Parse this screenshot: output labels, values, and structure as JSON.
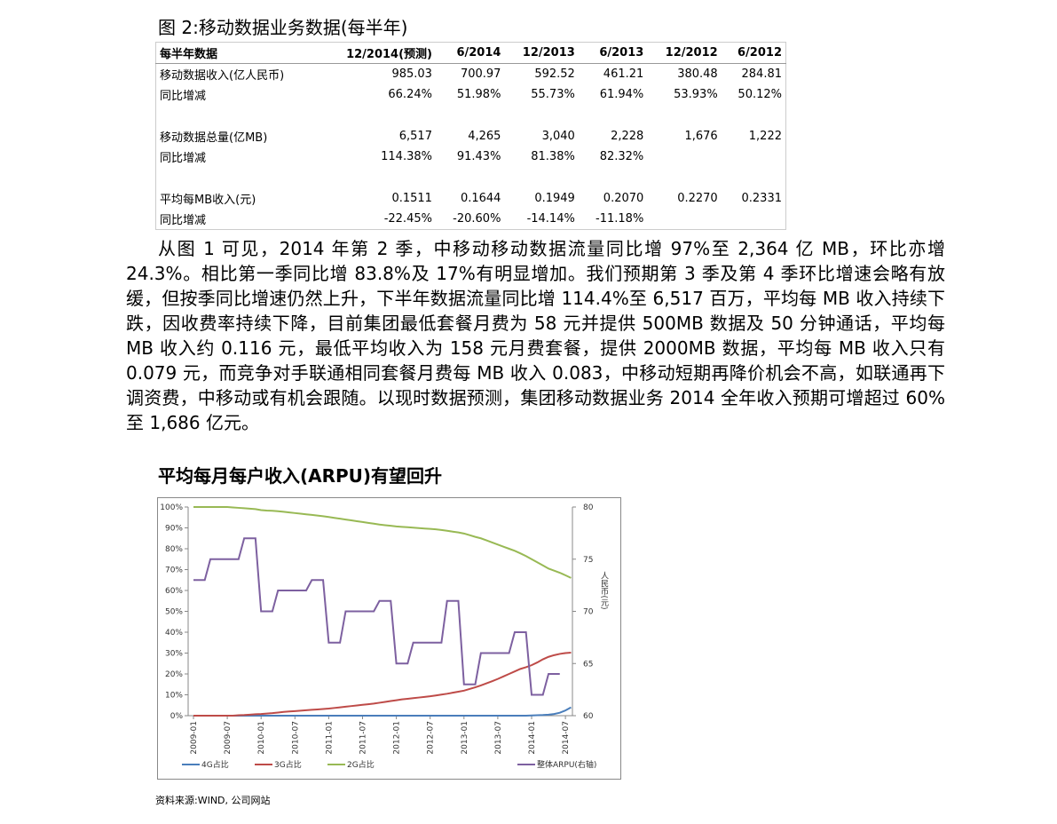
{
  "figure_title": "图 2:移动数据业务数据(每半年)",
  "table": {
    "header": [
      "每半年数据",
      "12/2014(预测)",
      "6/2014",
      "12/2013",
      "6/2013",
      "12/2012",
      "6/2012"
    ],
    "rows": [
      [
        "移动数据收入(亿人民币)",
        "985.03",
        "700.97",
        "592.52",
        "461.21",
        "380.48",
        "284.81"
      ],
      [
        "同比增减",
        "66.24%",
        "51.98%",
        "55.73%",
        "61.94%",
        "53.93%",
        "50.12%"
      ],
      [
        "移动数据总量(亿MB)",
        "6,517",
        "4,265",
        "3,040",
        "2,228",
        "1,676",
        "1,222"
      ],
      [
        "同比增减",
        "114.38%",
        "91.43%",
        "81.38%",
        "82.32%",
        null,
        null
      ],
      [
        "平均每MB收入(元)",
        "0.1511",
        "0.1644",
        "0.1949",
        "0.2070",
        "0.2270",
        "0.2331"
      ],
      [
        "同比增减",
        "-22.45%",
        "-20.60%",
        "-14.14%",
        "-11.18%",
        null,
        null
      ]
    ]
  },
  "paragraph": "从图 1 可见，2014 年第 2 季，中移动移动数据流量同比增 97%至 2,364 亿 MB，环比亦增 24.3%。相比第一季同比增 83.8%及 17%有明显增加。我们预期第 3 季及第 4 季环比增速会略有放缓，但按季同比增速仍然上升，下半年数据流量同比增 114.4%至 6,517 百万，平均每 MB 收入持续下跌，因收费率持续下降，目前集团最低套餐月费为 58 元并提供 500MB 数据及 50 分钟通话，平均每 MB 收入约 0.116 元，最低平均收入为 158 元月费套餐，提供 2000MB 数据，平均每 MB 收入只有 0.079 元，而竞争对手联通相同套餐月费每 MB 收入 0.083，中移动短期再降价机会不高，如联通再下调资费，中移动或有机会跟随。以现时数据预测，集团移动数据业务 2014 全年收入预期可增超过 60%至 1,686 亿元。",
  "heading": "平均每月每户收入(ARPU)有望回升",
  "chart_data": {
    "type": "line",
    "categories": [
      "2009-01",
      null,
      null,
      null,
      null,
      null,
      "2009-07",
      null,
      null,
      null,
      null,
      null,
      "2010-01",
      null,
      null,
      null,
      null,
      null,
      "2010-07",
      null,
      null,
      null,
      null,
      null,
      "2011-01",
      null,
      null,
      null,
      null,
      null,
      "2011-07",
      null,
      null,
      null,
      null,
      null,
      "2012-01",
      null,
      null,
      null,
      null,
      null,
      "2012-07",
      null,
      null,
      null,
      null,
      null,
      "2013-01",
      null,
      null,
      null,
      null,
      null,
      "2013-07",
      null,
      null,
      null,
      null,
      null,
      "2014-01",
      null,
      null,
      null,
      null,
      null,
      "2014-07",
      null
    ],
    "series": [
      {
        "name": "4G占比",
        "color": "#4a7ebb",
        "values": [
          0,
          0,
          0,
          0,
          0,
          0,
          0,
          0,
          0,
          0,
          0,
          0,
          0,
          0,
          0,
          0,
          0,
          0,
          0,
          0,
          0,
          0,
          0,
          0,
          0,
          0,
          0,
          0,
          0,
          0,
          0,
          0,
          0,
          0,
          0,
          0,
          0,
          0,
          0,
          0,
          0,
          0,
          0,
          0,
          0,
          0,
          0,
          0,
          0,
          0,
          0,
          0,
          0,
          0,
          0,
          0,
          0,
          0,
          0,
          0,
          0.1,
          0.2,
          0.3,
          0.5,
          0.8,
          1.4,
          2.5,
          4
        ]
      },
      {
        "name": "3G占比",
        "color": "#be4b48",
        "values": [
          0,
          0,
          0,
          0,
          0,
          0,
          0,
          0,
          0.2,
          0.3,
          0.5,
          0.7,
          0.8,
          1,
          1.2,
          1.5,
          1.8,
          2,
          2.2,
          2.4,
          2.6,
          2.8,
          3,
          3.2,
          3.4,
          3.7,
          4,
          4.3,
          4.6,
          4.9,
          5.2,
          5.5,
          5.8,
          6.2,
          6.6,
          7,
          7.4,
          7.8,
          8.1,
          8.4,
          8.7,
          9,
          9.3,
          9.7,
          10.1,
          10.5,
          11,
          11.5,
          12,
          12.8,
          13.6,
          14.5,
          15.5,
          16.5,
          17.6,
          18.8,
          20,
          21.2,
          22.4,
          23.2,
          24.2,
          25.5,
          27,
          28.2,
          29,
          29.6,
          30,
          30.2
        ]
      },
      {
        "name": "2G占比",
        "color": "#98b954",
        "values": [
          100,
          100,
          100,
          100,
          100,
          100,
          100,
          99.8,
          99.6,
          99.4,
          99.2,
          99,
          98.5,
          98.3,
          98.2,
          98,
          97.7,
          97.4,
          97.1,
          96.8,
          96.5,
          96.2,
          95.9,
          95.6,
          95.2,
          94.8,
          94.4,
          94,
          93.6,
          93.2,
          92.8,
          92.4,
          92,
          91.6,
          91.3,
          91,
          90.7,
          90.5,
          90.3,
          90.1,
          89.9,
          89.7,
          89.5,
          89.3,
          89,
          88.6,
          88.2,
          87.8,
          87.3,
          86.5,
          85.7,
          85,
          84,
          83,
          82,
          81,
          80,
          79,
          77.8,
          76.5,
          75,
          73.5,
          72,
          70.5,
          69.5,
          68.5,
          67.3,
          66
        ]
      },
      {
        "name": "整体ARPU(右轴)",
        "color": "#7d60a0",
        "axis": "y2",
        "values": [
          73,
          73,
          73,
          75,
          75,
          75,
          75,
          75,
          75,
          77,
          77,
          77,
          70,
          70,
          70,
          72,
          72,
          72,
          72,
          72,
          72,
          73,
          73,
          73,
          67,
          67,
          67,
          70,
          70,
          70,
          70,
          70,
          70,
          71,
          71,
          71,
          65,
          65,
          65,
          67,
          67,
          67,
          67,
          67,
          67,
          71,
          71,
          71,
          63,
          63,
          63,
          66,
          66,
          66,
          66,
          66,
          66,
          68,
          68,
          68,
          62,
          62,
          62,
          64,
          64,
          64,
          null,
          null
        ]
      }
    ],
    "ylim": [
      0,
      100
    ],
    "yticks": [
      {
        "value": 0,
        "label": "0%"
      },
      {
        "value": 10,
        "label": "10%"
      },
      {
        "value": 20,
        "label": "20%"
      },
      {
        "value": 30,
        "label": "30%"
      },
      {
        "value": 40,
        "label": "40%"
      },
      {
        "value": 50,
        "label": "50%"
      },
      {
        "value": 60,
        "label": "60%"
      },
      {
        "value": 70,
        "label": "70%"
      },
      {
        "value": 80,
        "label": "80%"
      },
      {
        "value": 90,
        "label": "90%"
      },
      {
        "value": 100,
        "label": "100%"
      }
    ],
    "y2lim": [
      60,
      80
    ],
    "y2ticks": [
      60,
      65,
      70,
      75,
      80
    ],
    "y2label": "人民币(元)",
    "grid": false,
    "legend": "bottom"
  },
  "source": "资料来源:WIND, 公司网站"
}
